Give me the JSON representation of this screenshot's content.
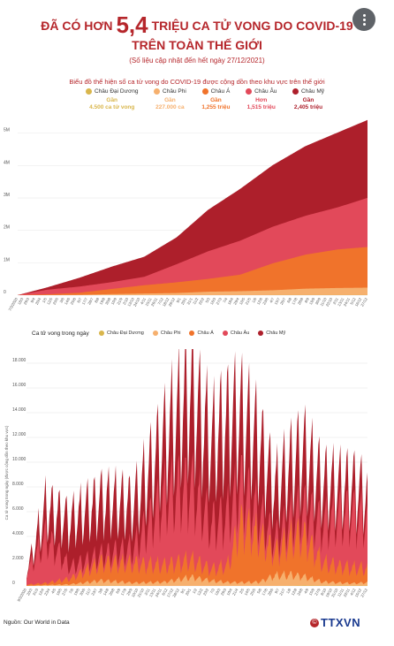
{
  "header": {
    "title_pre": "ĐÃ CÓ HƠN",
    "title_number": "5,4",
    "title_post": "TRIỆU CA TỬ VONG DO COVID-19",
    "title_line2": "TRÊN TOÀN THẾ GIỚI",
    "subtitle": "(Số liệu cập nhật đến hết ngày 27/12/2021)"
  },
  "menu_icon": "more-vertical-icon",
  "colors": {
    "title": "#b5262b",
    "oceania": "#d9b64c",
    "africa": "#f6b06e",
    "asia": "#f0732b",
    "europe": "#e2495a",
    "america": "#ad1f2b"
  },
  "chart1_header": {
    "title": "Biểu đồ thể hiện số ca tử vong do COVID-19 được cộng dồn theo khu vực trên thế giới",
    "legend": [
      {
        "name": "Châu Đại Dương",
        "note": "Gần",
        "value": "4.500 ca tử vong",
        "color": "#d9b64c"
      },
      {
        "name": "Châu Phi",
        "note": "Gần",
        "value": "227.000 ca",
        "color": "#f6b06e"
      },
      {
        "name": "Châu Á",
        "note": "Gần",
        "value": "1,255 triệu",
        "color": "#f0732b"
      },
      {
        "name": "Châu Âu",
        "note": "Hơn",
        "value": "1,515 triệu",
        "color": "#e2495a"
      },
      {
        "name": "Châu Mỹ",
        "note": "Gần",
        "value": "2,405 triệu",
        "color": "#ad1f2b"
      }
    ]
  },
  "chart2_header": {
    "label": "Ca tử vong trong ngày",
    "legend": [
      "Châu Đại Dương",
      "Châu Phi",
      "Châu Á",
      "Châu Âu",
      "Châu Mỹ"
    ],
    "ylabel": "Ca tử vong trong ngày (được cộng dồn theo khu vực)"
  },
  "source": "Nguồn: Our World in Data",
  "logo": "TTXVN",
  "chart_data": [
    {
      "type": "area",
      "stacked": true,
      "title": "Biểu đồ thể hiện số ca tử vong do COVID-19 được cộng dồn theo khu vực trên thế giới",
      "yticks": [
        "0",
        "1M",
        "2M",
        "3M",
        "4M",
        "5M"
      ],
      "ylim": [
        0,
        5400000
      ],
      "xlim": [
        "7/3/2020",
        "27/12/2021"
      ],
      "x": [
        "7/3/2020",
        "1/5/2020",
        "1/7/2020",
        "1/9/2020",
        "1/11/2020",
        "1/1/2021",
        "1/3/2021",
        "1/5/2021",
        "1/7/2021",
        "1/9/2021",
        "1/11/2021",
        "27/12/2021"
      ],
      "series": [
        {
          "name": "Châu Đại Dương",
          "values": [
            0,
            100,
            200,
            900,
            1000,
            1100,
            1300,
            1500,
            1800,
            2300,
            3400,
            4500
          ]
        },
        {
          "name": "Châu Phi",
          "values": [
            0,
            1700,
            9000,
            32000,
            49000,
            65000,
            105000,
            121000,
            149000,
            198000,
            218000,
            227000
          ]
        },
        {
          "name": "Châu Á",
          "values": [
            2000,
            23000,
            65000,
            160000,
            257000,
            330000,
            395000,
            510000,
            830000,
            1050000,
            1190000,
            1255000
          ]
        },
        {
          "name": "Châu Âu",
          "values": [
            100,
            142000,
            190000,
            210000,
            260000,
            560000,
            850000,
            1050000,
            1130000,
            1200000,
            1300000,
            1515000
          ]
        },
        {
          "name": "Châu Mỹ",
          "values": [
            100,
            70000,
            270000,
            480000,
            620000,
            830000,
            1280000,
            1600000,
            1900000,
            2150000,
            2310000,
            2405000
          ]
        }
      ]
    },
    {
      "type": "area",
      "stacked": true,
      "title": "Ca tử vong trong ngày",
      "ylabel": "Ca tử vong trong ngày (được cộng dồn theo khu vực)",
      "yticks": [
        "0",
        "2.000",
        "4.000",
        "6.000",
        "8.000",
        "10.000",
        "12.000",
        "14.000",
        "16.000",
        "18.000"
      ],
      "ylim": [
        0,
        18000
      ],
      "xlim": [
        "9/3/2020",
        "27/12/2021"
      ],
      "x": [
        "9/3/2020",
        "15/4/2020",
        "1/6/2020",
        "1/8/2020",
        "1/10/2020",
        "1/12/2020",
        "20/1/2021",
        "1/3/2021",
        "1/4/2021",
        "26/4/2021",
        "1/6/2021",
        "1/7/2021",
        "1/8/2021",
        "25/8/2021",
        "1/10/2021",
        "1/11/2021",
        "1/12/2021",
        "27/12/2021"
      ],
      "series": [
        {
          "name": "Châu Đại Dương",
          "values": [
            0,
            3,
            2,
            15,
            5,
            2,
            3,
            2,
            2,
            2,
            2,
            3,
            10,
            30,
            20,
            25,
            20,
            20
          ]
        },
        {
          "name": "Châu Phi",
          "values": [
            5,
            60,
            120,
            400,
            230,
            300,
            680,
            400,
            280,
            260,
            300,
            800,
            850,
            700,
            300,
            220,
            180,
            250
          ]
        },
        {
          "name": "Châu Á",
          "values": [
            90,
            150,
            450,
            1400,
            1500,
            1300,
            1350,
            900,
            1300,
            4600,
            3500,
            1800,
            2800,
            3200,
            1500,
            1300,
            1200,
            1100
          ]
        },
        {
          "name": "Châu Âu",
          "values": [
            900,
            3600,
            900,
            600,
            1200,
            5400,
            5800,
            3500,
            4000,
            3000,
            1800,
            1000,
            1600,
            2000,
            3000,
            4000,
            4200,
            3800
          ]
        },
        {
          "name": "Châu Mỹ",
          "values": [
            80,
            2300,
            3600,
            4300,
            3500,
            4500,
            7200,
            6500,
            7300,
            5500,
            5600,
            4000,
            4200,
            4500,
            3300,
            2300,
            2200,
            2000
          ]
        }
      ]
    }
  ]
}
